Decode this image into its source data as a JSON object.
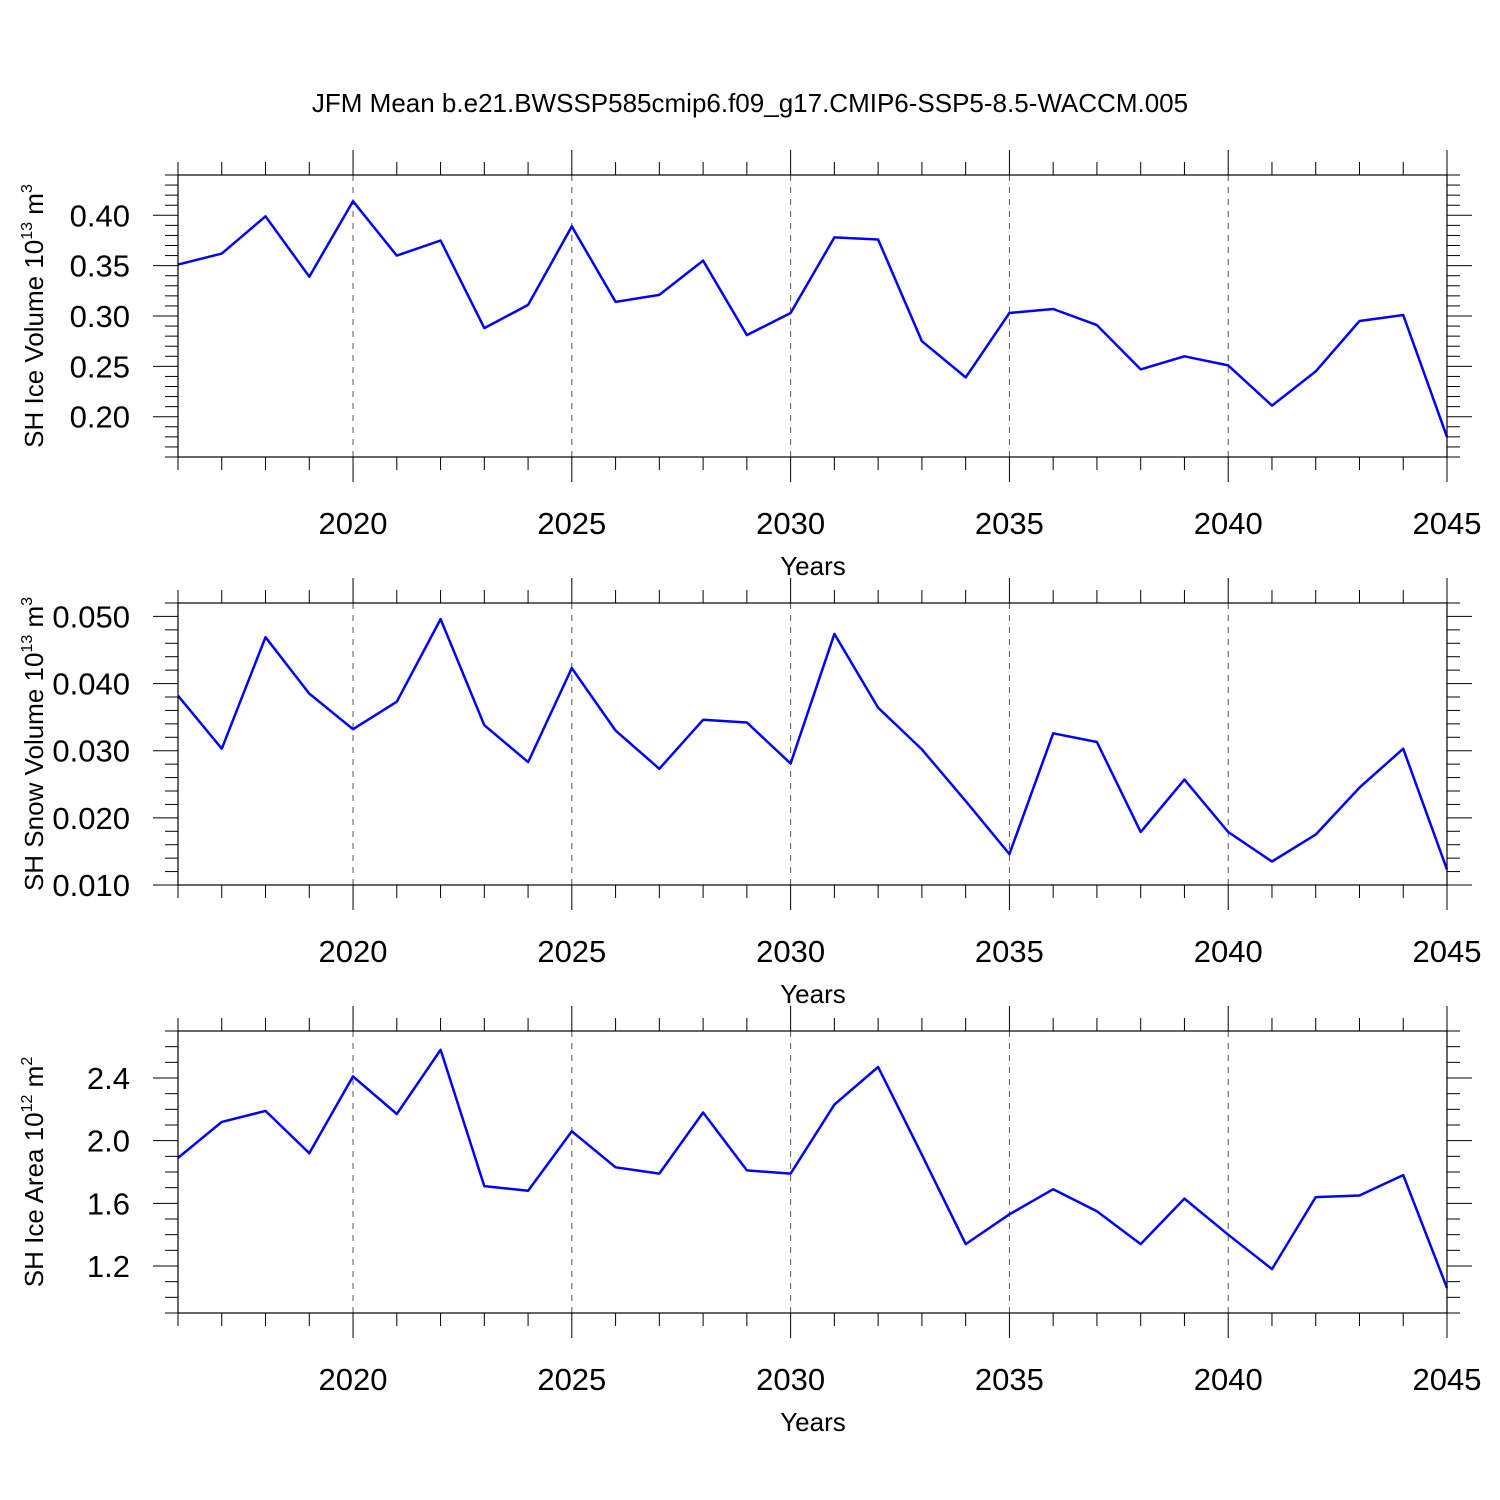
{
  "title": "JFM Mean b.e21.BWSSP585cmip6.f09_g17.CMIP6-SSP5-8.5-WACCM.005",
  "chart_data": [
    {
      "type": "line",
      "xlabel": "Years",
      "ylabel": {
        "text": "SH Ice Volume 10",
        "exp": "13",
        "unit": " m",
        "unit_exp": "3"
      },
      "xlim": [
        2016,
        2045
      ],
      "ylim": [
        0.16,
        0.44
      ],
      "yticks": [
        0.2,
        0.25,
        0.3,
        0.35,
        0.4
      ],
      "ytick_labels": [
        "0.20",
        "0.25",
        "0.30",
        "0.35",
        "0.40"
      ],
      "yminor_step": 0.01,
      "xticks": [
        2020,
        2025,
        2030,
        2035,
        2040,
        2045
      ],
      "xtick_labels": [
        "2020",
        "2025",
        "2030",
        "2035",
        "2040",
        "2045"
      ],
      "grid": "x-dashed",
      "color": "#0000ff",
      "x": [
        2016,
        2017,
        2018,
        2019,
        2020,
        2021,
        2022,
        2023,
        2024,
        2025,
        2026,
        2027,
        2028,
        2029,
        2030,
        2031,
        2032,
        2033,
        2034,
        2035,
        2036,
        2037,
        2038,
        2039,
        2040,
        2041,
        2042,
        2043,
        2044,
        2045
      ],
      "y": [
        0.351,
        0.362,
        0.399,
        0.339,
        0.414,
        0.36,
        0.375,
        0.288,
        0.311,
        0.389,
        0.314,
        0.321,
        0.355,
        0.281,
        0.303,
        0.378,
        0.376,
        0.275,
        0.239,
        0.303,
        0.307,
        0.291,
        0.247,
        0.26,
        0.251,
        0.211,
        0.245,
        0.295,
        0.301,
        0.18
      ]
    },
    {
      "type": "line",
      "xlabel": "Years",
      "ylabel": {
        "text": "SH Snow Volume 10",
        "exp": "13",
        "unit": " m",
        "unit_exp": "3"
      },
      "xlim": [
        2016,
        2045
      ],
      "ylim": [
        0.01,
        0.052
      ],
      "yticks": [
        0.01,
        0.02,
        0.03,
        0.04,
        0.05
      ],
      "ytick_labels": [
        "0.010",
        "0.020",
        "0.030",
        "0.040",
        "0.050"
      ],
      "yminor_step": 0.002,
      "xticks": [
        2020,
        2025,
        2030,
        2035,
        2040,
        2045
      ],
      "xtick_labels": [
        "2020",
        "2025",
        "2030",
        "2035",
        "2040",
        "2045"
      ],
      "grid": "x-dashed",
      "color": "#0000ff",
      "x": [
        2016,
        2017,
        2018,
        2019,
        2020,
        2021,
        2022,
        2023,
        2024,
        2025,
        2026,
        2027,
        2028,
        2029,
        2030,
        2031,
        2032,
        2033,
        2034,
        2035,
        2036,
        2037,
        2038,
        2039,
        2040,
        2041,
        2042,
        2043,
        2044,
        2045
      ],
      "y": [
        0.0382,
        0.0303,
        0.0469,
        0.0385,
        0.0332,
        0.0373,
        0.0496,
        0.0338,
        0.0283,
        0.0423,
        0.033,
        0.0273,
        0.0346,
        0.0342,
        0.0281,
        0.0474,
        0.0364,
        0.0302,
        0.0225,
        0.0146,
        0.0326,
        0.0313,
        0.0179,
        0.0257,
        0.0179,
        0.0135,
        0.0175,
        0.0245,
        0.0303,
        0.0123
      ]
    },
    {
      "type": "line",
      "xlabel": "Years",
      "ylabel": {
        "text": "SH Ice Area 10",
        "exp": "12",
        "unit": " m",
        "unit_exp": "2"
      },
      "xlim": [
        2016,
        2045
      ],
      "ylim": [
        0.9,
        2.7
      ],
      "yticks": [
        1.2,
        1.6,
        2.0,
        2.4
      ],
      "ytick_labels": [
        "1.2",
        "1.6",
        "2.0",
        "2.4"
      ],
      "yminor_step": 0.1,
      "xticks": [
        2020,
        2025,
        2030,
        2035,
        2040,
        2045
      ],
      "xtick_labels": [
        "2020",
        "2025",
        "2030",
        "2035",
        "2040",
        "2045"
      ],
      "grid": "x-dashed",
      "color": "#0000ff",
      "x": [
        2016,
        2017,
        2018,
        2019,
        2020,
        2021,
        2022,
        2023,
        2024,
        2025,
        2026,
        2027,
        2028,
        2029,
        2030,
        2031,
        2032,
        2033,
        2034,
        2035,
        2036,
        2037,
        2038,
        2039,
        2040,
        2041,
        2042,
        2043,
        2044,
        2045
      ],
      "y": [
        1.89,
        2.12,
        2.19,
        1.92,
        2.41,
        2.17,
        2.58,
        1.71,
        1.68,
        2.06,
        1.83,
        1.79,
        2.18,
        1.81,
        1.79,
        2.23,
        2.47,
        1.91,
        1.34,
        1.53,
        1.69,
        1.55,
        1.34,
        1.63,
        1.4,
        1.18,
        1.64,
        1.65,
        1.78,
        1.06
      ]
    }
  ]
}
